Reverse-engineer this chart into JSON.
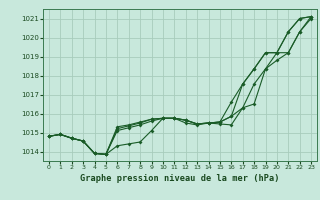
{
  "title": "Graphe pression niveau de la mer (hPa)",
  "bg_color": "#c8e8dc",
  "grid_color": "#a8ccbc",
  "line_color": "#1a5c28",
  "xlim": [
    -0.5,
    23.5
  ],
  "ylim": [
    1013.5,
    1021.5
  ],
  "x_ticks": [
    0,
    1,
    2,
    3,
    4,
    5,
    6,
    7,
    8,
    9,
    10,
    11,
    12,
    13,
    14,
    15,
    16,
    17,
    18,
    19,
    20,
    21,
    22,
    23
  ],
  "yticks": [
    1014,
    1015,
    1016,
    1017,
    1018,
    1019,
    1020,
    1021
  ],
  "series": [
    [
      1014.8,
      1014.9,
      1014.7,
      1014.55,
      1013.9,
      1013.85,
      1014.3,
      1014.4,
      1014.5,
      1015.1,
      1015.75,
      1015.75,
      1015.65,
      1015.45,
      1015.5,
      1015.55,
      1015.85,
      1016.3,
      1017.55,
      1018.35,
      1019.2,
      1020.3,
      1021.0,
      1021.1
    ],
    [
      1014.8,
      1014.9,
      1014.7,
      1014.55,
      1013.9,
      1013.85,
      1015.1,
      1015.25,
      1015.4,
      1015.6,
      1015.75,
      1015.75,
      1015.65,
      1015.45,
      1015.5,
      1015.55,
      1015.85,
      1017.55,
      1018.35,
      1019.2,
      1019.2,
      1020.3,
      1021.0,
      1021.1
    ],
    [
      1014.8,
      1014.9,
      1014.7,
      1014.55,
      1013.9,
      1013.85,
      1015.2,
      1015.35,
      1015.5,
      1015.7,
      1015.75,
      1015.75,
      1015.65,
      1015.45,
      1015.5,
      1015.55,
      1016.6,
      1017.55,
      1018.35,
      1019.2,
      1019.2,
      1019.2,
      1020.3,
      1021.0
    ],
    [
      1014.8,
      1014.9,
      1014.7,
      1014.55,
      1013.9,
      1013.85,
      1015.3,
      1015.4,
      1015.55,
      1015.7,
      1015.75,
      1015.75,
      1015.5,
      1015.4,
      1015.5,
      1015.45,
      1015.4,
      1016.3,
      1016.5,
      1018.35,
      1018.8,
      1019.2,
      1020.3,
      1021.1
    ]
  ]
}
